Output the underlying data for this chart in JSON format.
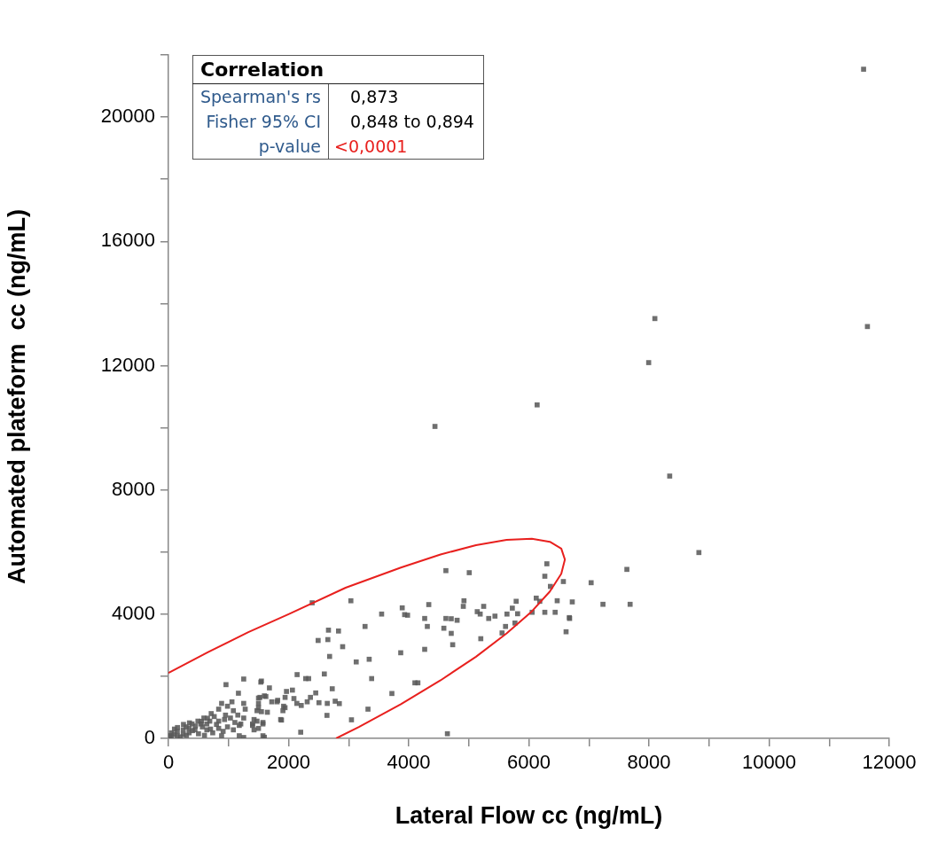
{
  "chart_data": {
    "type": "scatter",
    "xlabel": "Lateral Flow cc (ng/mL)",
    "ylabel": "Automated plateform  cc (ng/mL)",
    "annotations": [
      "Correlation",
      "Spearman's rs",
      "0,873",
      "Fisher 95% CI",
      "0,848  to 0,894",
      "p-value",
      "<0,0001"
    ],
    "xlim": [
      0,
      12000
    ],
    "xticks": [
      0,
      {
        "value": 1000,
        "label": null
      },
      2000,
      {
        "value": 3000,
        "label": null
      },
      4000,
      {
        "value": 5000,
        "label": null
      },
      6000,
      {
        "value": 7000,
        "label": null
      },
      8000,
      {
        "value": 9000,
        "label": null
      },
      10000,
      {
        "value": 11000,
        "label": null
      },
      12000
    ],
    "ylim": [
      0,
      22000
    ],
    "yticks": [
      0,
      {
        "value": 2000,
        "label": null
      },
      4000,
      {
        "value": 6000,
        "label": null
      },
      8000,
      {
        "value": 10000,
        "label": null
      },
      12000,
      {
        "value": 14000,
        "label": null
      },
      16000,
      {
        "value": 18000,
        "label": null
      },
      20000,
      {
        "value": 22000,
        "label": null
      }
    ],
    "grid": false,
    "legend": false,
    "series": [
      {
        "type": "line",
        "marker": "none",
        "color": "#e8201e",
        "x": [
          0,
          660,
          1330,
          2000,
          2950,
          3870,
          4530,
          5120,
          5630,
          6050,
          6350,
          6540,
          6600,
          6540,
          6350,
          6050,
          5630,
          5120,
          4530,
          3870,
          3170,
          2790
        ],
        "values": [
          2110,
          2780,
          3420,
          4000,
          4850,
          5500,
          5920,
          6220,
          6390,
          6430,
          6330,
          6110,
          5760,
          5300,
          4730,
          4090,
          3380,
          2630,
          1870,
          1100,
          370,
          0
        ]
      },
      {
        "marker": "square",
        "color": "#595959",
        "x": [
          11573,
          8098,
          11637,
          7995,
          6138,
          4437,
          8345,
          8831,
          7632,
          6300,
          6266,
          6575,
          7037,
          6359,
          6123,
          5789,
          6182,
          6472,
          6723,
          7234,
          7686,
          5813,
          6055,
          6266,
          6438,
          6674,
          6620,
          6679,
          4619,
          5008,
          4334,
          4920,
          4909,
          5248,
          5141,
          5190,
          4266,
          4619,
          4708,
          4806,
          4310,
          4585,
          4708,
          4732,
          4266,
          5200,
          5332,
          5436,
          5636,
          5725,
          5612,
          5554,
          5769,
          3981,
          4103,
          4153,
          4644,
          2393,
          3037,
          3549,
          3892,
          3932,
          3273,
          2664,
          2831,
          2492,
          2654,
          2900,
          2683,
          3126,
          3342,
          3867,
          2142,
          2285,
          2334,
          2595,
          3383,
          3720,
          2727,
          3322,
          3047,
          2639,
          2202,
          2452,
          2364,
          2506,
          2644,
          2776,
          2845,
          2211,
          2089,
          1965,
          1942,
          2064,
          1548,
          1681,
          1622,
          1523,
          1809,
          1906,
          1499,
          1474,
          1400,
          1573,
          1499,
          1597,
          1882,
          1917,
          1253,
          958,
          1165,
          1538,
          1499,
          1597,
          1720,
          1818,
          1941,
          1499,
          1548,
          1647,
          1425,
          1573,
          1868,
          2138,
          2310,
          1253,
          1278,
          1253,
          1204,
          1179,
          1253,
          1057,
          983,
          1081,
          885,
          836,
          1032,
          934,
          1106,
          836,
          983,
          1081,
          762,
          688,
          639,
          565,
          712,
          590,
          442,
          344,
          246,
          147,
          49,
          393,
          295,
          491,
          147,
          246,
          49,
          20,
          98,
          344,
          541,
          639,
          737,
          885,
          836,
          910,
          1155,
          1179,
          1400,
          1474,
          1425,
          1573,
          100,
          200,
          300,
          400,
          500,
          600,
          700,
          800,
          950,
          650,
          550,
          450,
          350,
          250,
          150
        ],
        "values": [
          21541,
          13515,
          13258,
          12097,
          10736,
          10043,
          8445,
          5983,
          5441,
          5621,
          5221,
          5050,
          5012,
          4893,
          4516,
          4414,
          4414,
          4432,
          4394,
          4317,
          4317,
          4013,
          4060,
          4060,
          4060,
          3889,
          3433,
          3861,
          5401,
          5335,
          4308,
          4431,
          4251,
          4251,
          4080,
          4003,
          3861,
          3861,
          3852,
          3803,
          3604,
          3547,
          3381,
          3016,
          2867,
          3210,
          3861,
          3937,
          4003,
          4194,
          3604,
          3395,
          3714,
          3966,
          1789,
          1789,
          151,
          4365,
          4431,
          4003,
          4203,
          3985,
          3604,
          3485,
          3457,
          3153,
          3181,
          2953,
          2639,
          2462,
          2548,
          2757,
          2054,
          1926,
          1926,
          2074,
          1926,
          1446,
          1598,
          942,
          599,
          742,
          200,
          1464,
          1321,
          1150,
          1127,
          1198,
          1121,
          1061,
          1284,
          1512,
          1321,
          1555,
          1846,
          1626,
          1350,
          1321,
          1178,
          893,
          1127,
          893,
          465,
          465,
          322,
          37,
          591,
          1036,
          1912,
          1731,
          1455,
          1812,
          1298,
          1369,
          1178,
          1227,
          990,
          990,
          861,
          842,
          608,
          513,
          608,
          1127,
          1178,
          1127,
          942,
          656,
          465,
          86,
          30,
          1178,
          1036,
          893,
          1127,
          942,
          656,
          608,
          513,
          556,
          371,
          276,
          704,
          556,
          465,
          371,
          799,
          656,
          276,
          180,
          128,
          86,
          37,
          465,
          371,
          556,
          228,
          276,
          180,
          86,
          128,
          323,
          465,
          276,
          180,
          86,
          323,
          228,
          751,
          418,
          418,
          556,
          276,
          86,
          300,
          50,
          100,
          250,
          150,
          100,
          300,
          450,
          750,
          650,
          550,
          400,
          500,
          450,
          350
        ]
      }
    ]
  }
}
